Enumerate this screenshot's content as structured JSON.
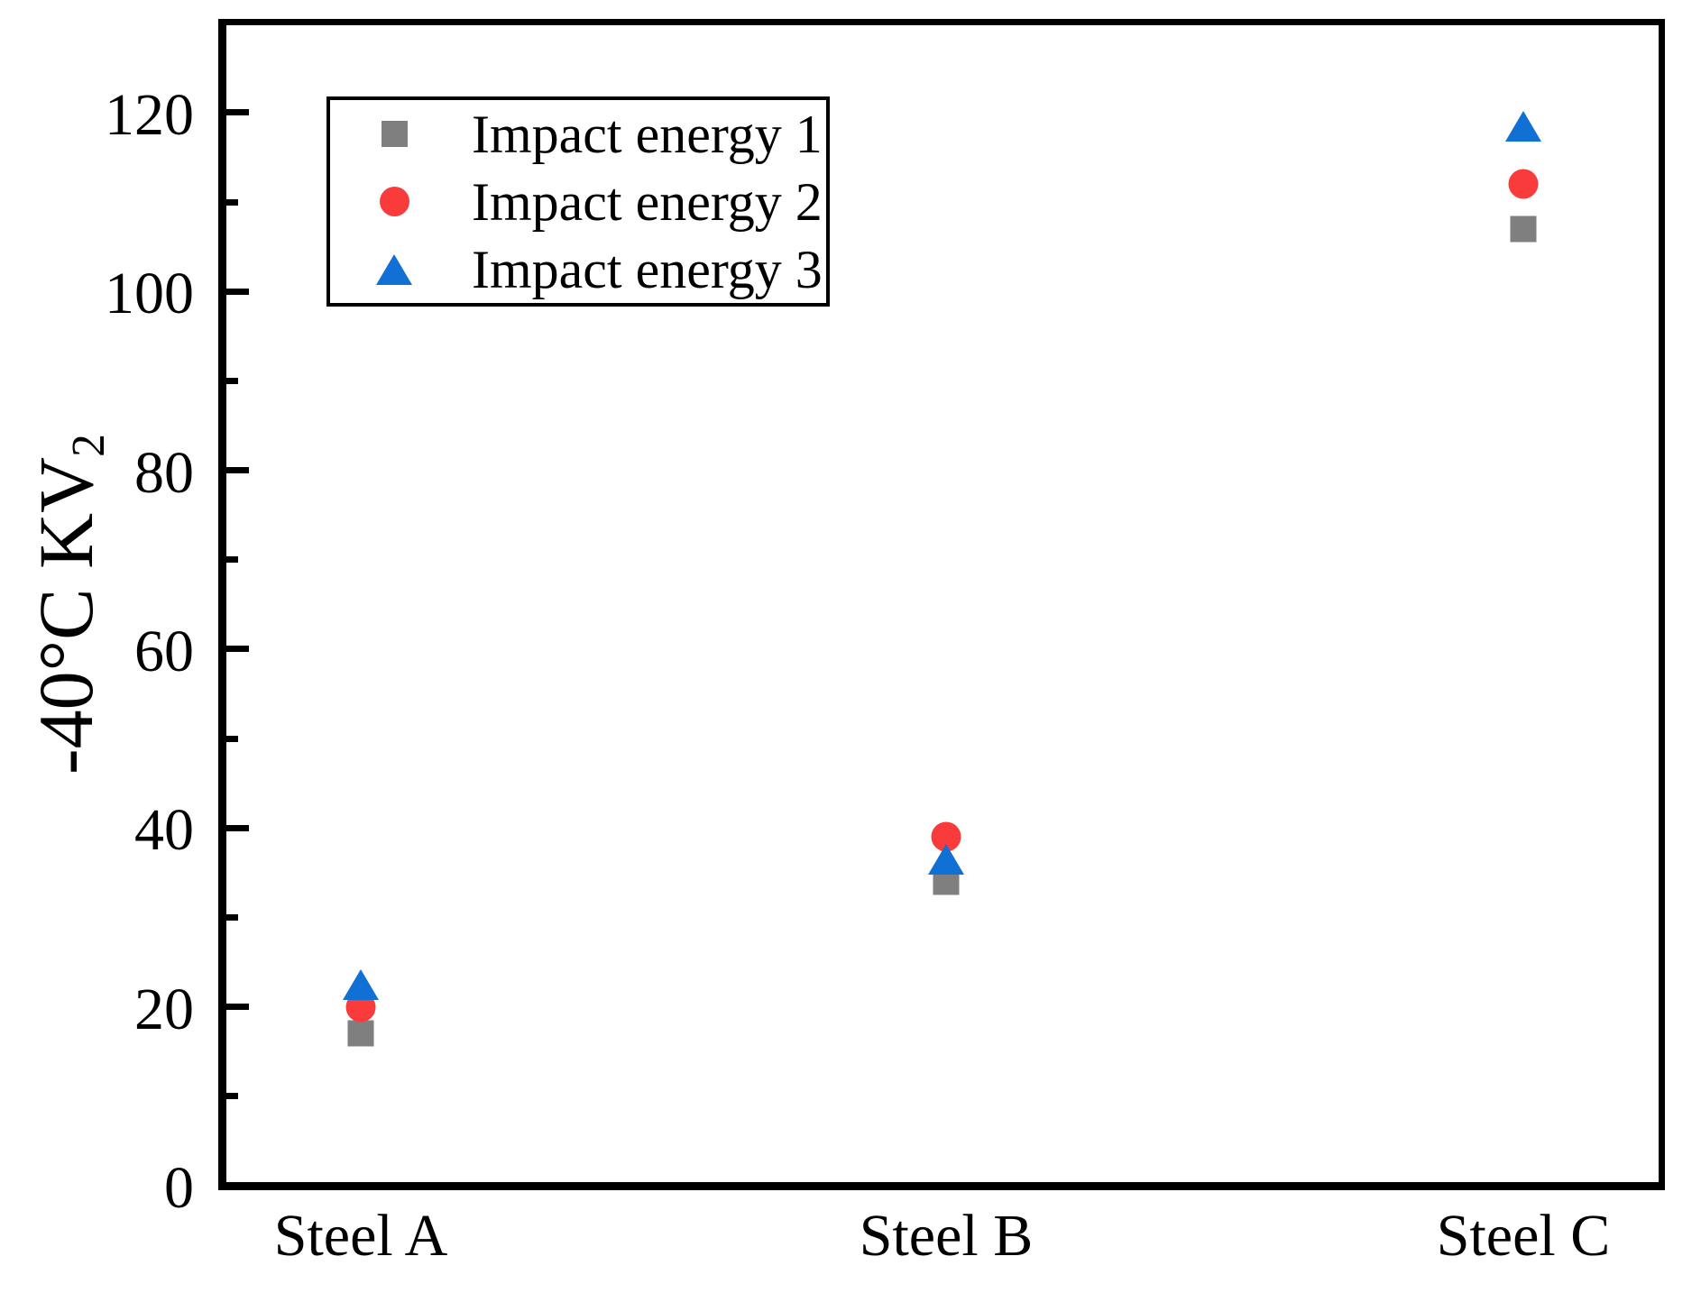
{
  "chart_data": {
    "type": "scatter",
    "title": "",
    "categories": [
      "Steel A",
      "Steel B",
      "Steel C"
    ],
    "series": [
      {
        "name": "Impact energy 1",
        "marker": "square",
        "color": "#7f7f7f",
        "values": [
          17,
          34,
          107
        ]
      },
      {
        "name": "Impact energy 2",
        "marker": "circle",
        "color": "#f93b3b",
        "values": [
          20,
          39,
          112
        ]
      },
      {
        "name": "Impact energy 3",
        "marker": "triangle",
        "color": "#1170d4",
        "values": [
          22.5,
          36.5,
          118.5
        ]
      }
    ],
    "xlabel": "",
    "ylabel": "-40°C KV₂",
    "ylabel_main": "-40°C KV",
    "ylabel_sub": "2",
    "ylim": [
      0,
      130
    ],
    "yticks": [
      0,
      20,
      40,
      60,
      80,
      100,
      120
    ],
    "minor_tick_step": 10,
    "grid": false,
    "legend_position": "upper-left",
    "axis_color": "#000000",
    "background_color": "#ffffff"
  }
}
